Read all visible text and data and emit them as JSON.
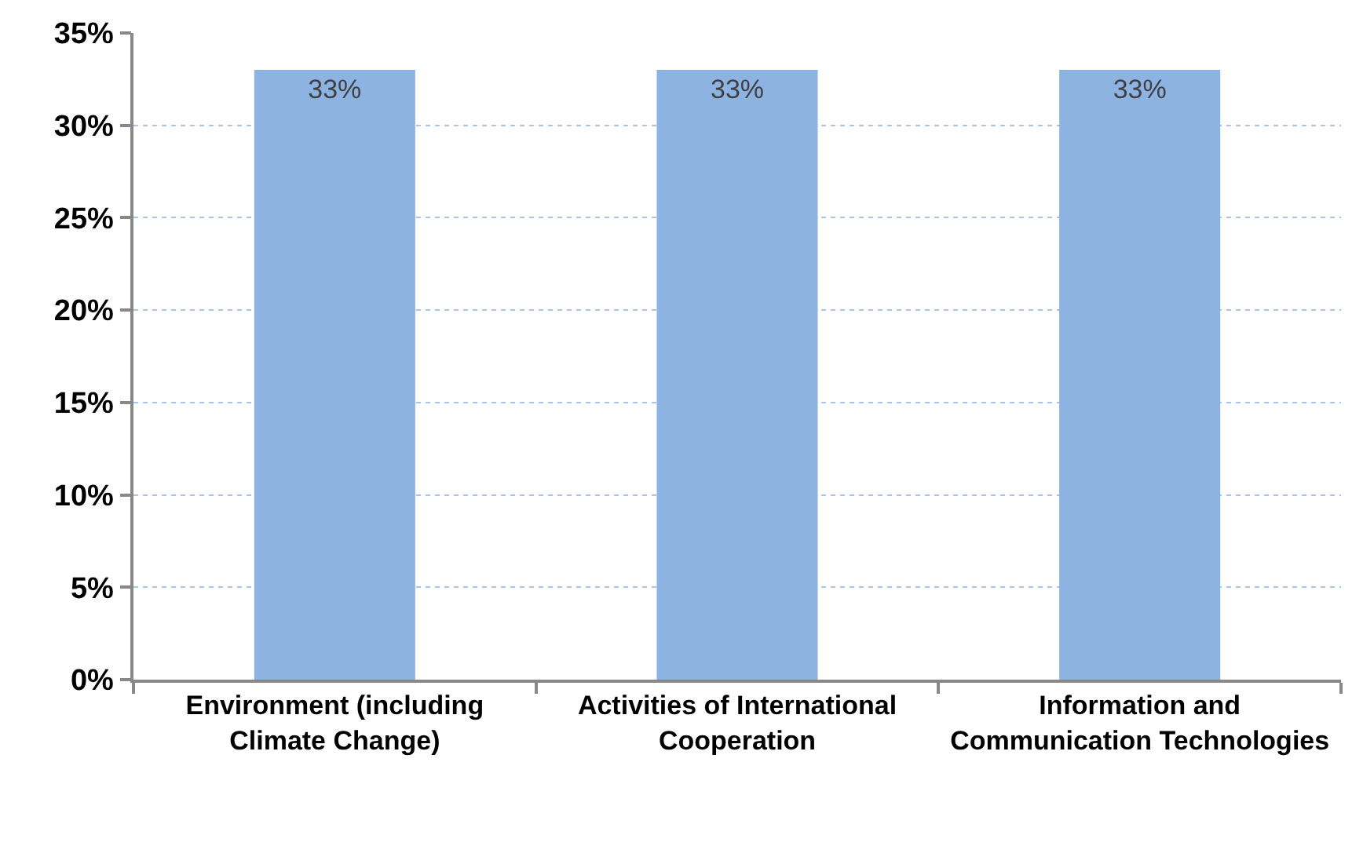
{
  "chart_data": {
    "type": "bar",
    "categories": [
      "Environment (including Climate Change)",
      "Activities of International Cooperation",
      "Information and Communication Technologies"
    ],
    "values": [
      33,
      33,
      33
    ],
    "color": "#8db3e2",
    "value_labels": [
      "33%",
      "33%",
      "33%"
    ],
    "ylim": [
      0,
      35
    ],
    "yticks": [
      {
        "value": 0,
        "label": "0%"
      },
      {
        "value": 5,
        "label": "5%"
      },
      {
        "value": 10,
        "label": "10%"
      },
      {
        "value": 15,
        "label": "15%"
      },
      {
        "value": 20,
        "label": "20%"
      },
      {
        "value": 25,
        "label": "25%"
      },
      {
        "value": 30,
        "label": "30%"
      },
      {
        "value": 35,
        "label": "35%"
      }
    ],
    "grid": "y",
    "legend": false
  }
}
